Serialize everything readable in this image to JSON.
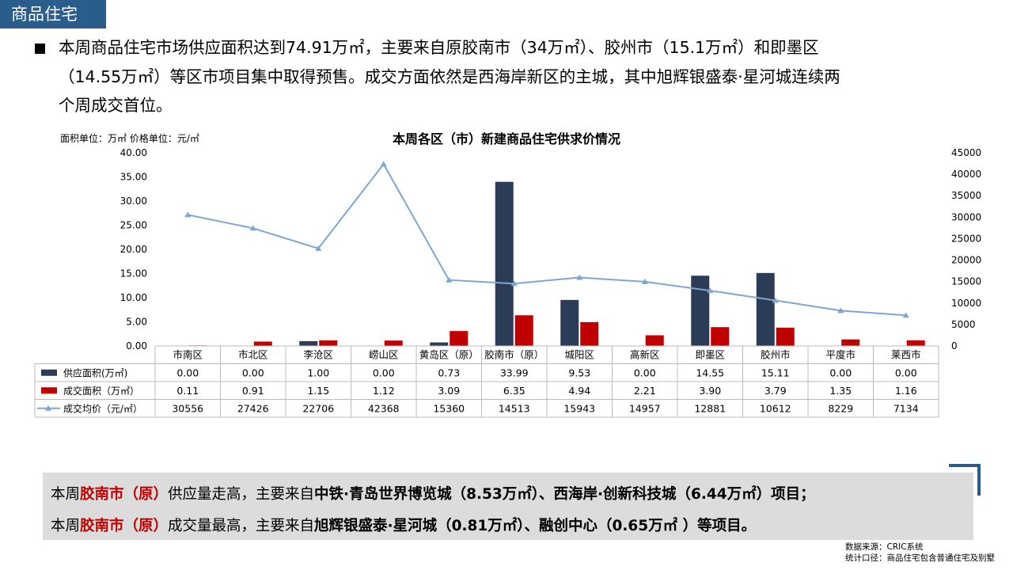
{
  "header": {
    "tag": "商品住宅"
  },
  "summary": {
    "line1": "本周商品住宅市场供应面积达到74.91万㎡，主要来自原胶南市（34万㎡）、胶州市（15.1万㎡）和即墨区",
    "line2": "（14.55万㎡）等区市项目集中取得预售。成交方面依然是西海岸新区的主城，其中旭辉银盛泰·星河城连续两",
    "line3": "个周成交首位。"
  },
  "units_note": "面积单位：万㎡ 价格单位：元/㎡",
  "colors": {
    "supply": "#2d3c56",
    "deal": "#c00000",
    "price": "#7fa6cc",
    "accent": "#2b5d8c"
  },
  "chart_data": {
    "type": "bar",
    "title": "本周各区（市）新建商品住宅供求价情况",
    "categories": [
      "市南区",
      "市北区",
      "李沧区",
      "崂山区",
      "黄岛区（原）",
      "胶南市（原）",
      "城阳区",
      "高新区",
      "即墨区",
      "胶州市",
      "平度市",
      "莱西市"
    ],
    "series": [
      {
        "name": "供应面积(万㎡)",
        "type": "bar",
        "axis": "left",
        "values": [
          0.0,
          0.0,
          1.0,
          0.0,
          0.73,
          33.99,
          9.53,
          0.0,
          14.55,
          15.11,
          0.0,
          0.0
        ],
        "labels": [
          "0.00",
          "0.00",
          "1.00",
          "0.00",
          "0.73",
          "33.99",
          "9.53",
          "0.00",
          "14.55",
          "15.11",
          "0.00",
          "0.00"
        ]
      },
      {
        "name": "成交面积（万㎡）",
        "type": "bar",
        "axis": "left",
        "values": [
          0.11,
          0.91,
          1.15,
          1.12,
          3.09,
          6.35,
          4.94,
          2.21,
          3.9,
          3.79,
          1.35,
          1.16
        ],
        "labels": [
          "0.11",
          "0.91",
          "1.15",
          "1.12",
          "3.09",
          "6.35",
          "4.94",
          "2.21",
          "3.90",
          "3.79",
          "1.35",
          "1.16"
        ]
      },
      {
        "name": "成交均价（元/㎡）",
        "type": "line",
        "axis": "right",
        "values": [
          30556,
          27426,
          22706,
          42368,
          15360,
          14513,
          15943,
          14957,
          12881,
          10612,
          8229,
          7134
        ],
        "labels": [
          "30556",
          "27426",
          "22706",
          "42368",
          "15360",
          "14513",
          "15943",
          "14957",
          "12881",
          "10612",
          "8229",
          "7134"
        ]
      }
    ],
    "y_left": {
      "range": [
        0,
        40
      ],
      "ticks": [
        "0.00",
        "5.00",
        "10.00",
        "15.00",
        "20.00",
        "25.00",
        "30.00",
        "35.00",
        "40.00"
      ]
    },
    "y_right": {
      "range": [
        0,
        45000
      ],
      "ticks": [
        "0",
        "5000",
        "10000",
        "15000",
        "20000",
        "25000",
        "30000",
        "35000",
        "40000",
        "45000"
      ]
    },
    "grid": false,
    "legend": "data-table-below"
  },
  "callout": {
    "l1": {
      "a": "本周",
      "b": "胶南市（原）",
      "c": "供应量走高，主要来自",
      "d": "中铁·青岛世界博览城",
      "e": "（8.53万㎡）、",
      "f": "西海岸·创新科技城",
      "g": "（6.44万㎡）项目；"
    },
    "l2": {
      "a": "本周",
      "b": "胶南市（原）",
      "c": "成交量最高，主要来自",
      "d": "旭辉银盛泰·星河城",
      "e": "（0.81万㎡）、",
      "f": "融创中心",
      "g": "（0.65万㎡ ）等项目。"
    }
  },
  "source": {
    "line1": "数据来源：CRIC系统",
    "line2": "统计口径：商品住宅包含普通住宅及别墅"
  }
}
